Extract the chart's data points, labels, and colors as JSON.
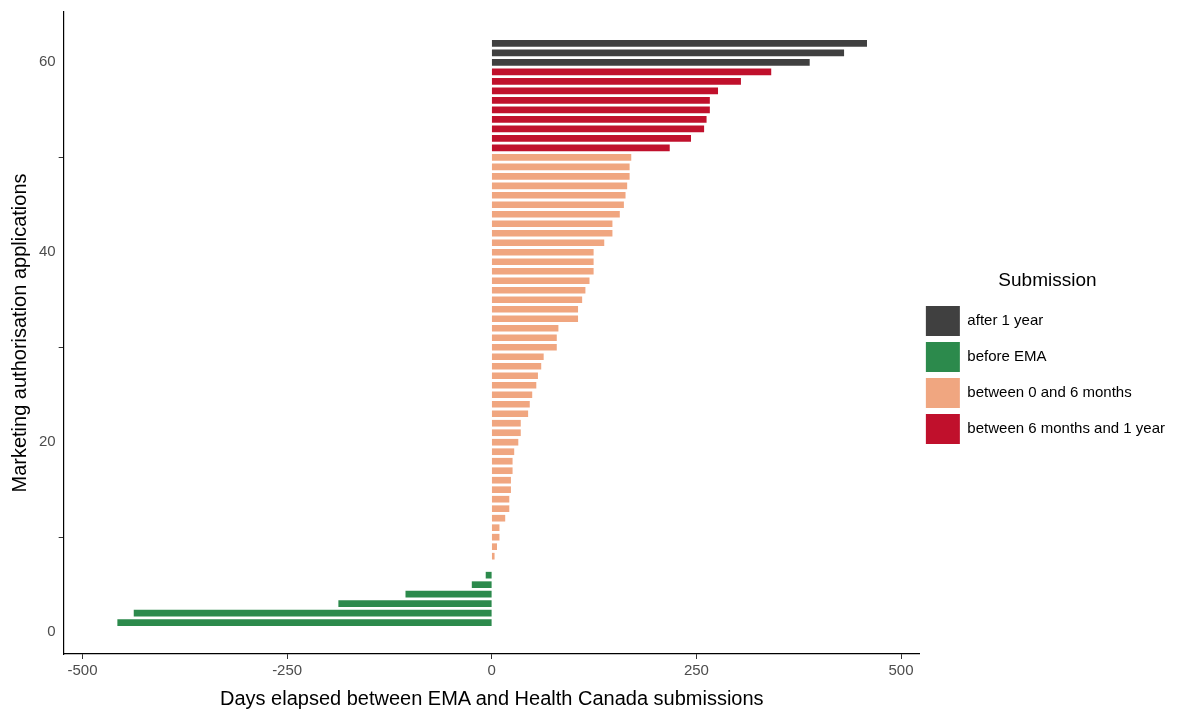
{
  "chart_data": {
    "type": "bar",
    "orientation": "horizontal",
    "xlabel": "Days elapsed between EMA and Health Canada submissions",
    "ylabel": "Marketing authorisation applications",
    "legend_title": "Submission",
    "legend": "right",
    "grid": false,
    "xlim": [
      -523,
      523
    ],
    "xticks": [
      -500,
      -250,
      0,
      250,
      500
    ],
    "ylim": [
      -2.3,
      65.3
    ],
    "yticks": [
      0,
      20,
      40,
      60
    ],
    "series": [
      {
        "name": "after 1 year",
        "color": "#404040",
        "x": [
          60,
          61,
          62
        ],
        "values": [
          388,
          430,
          458
        ]
      },
      {
        "name": "before EMA",
        "color": "#2c8a4c",
        "x": [
          1,
          2,
          3,
          4,
          5,
          6
        ],
        "values": [
          -457,
          -437,
          -187,
          -105,
          -24,
          -7
        ]
      },
      {
        "name": "between 0 and 6 months",
        "color": "#f0a680",
        "x": [
          8,
          9,
          10,
          11,
          12,
          13,
          14,
          15,
          16,
          17,
          18,
          19,
          20,
          21,
          22,
          23,
          24,
          25,
          26,
          27,
          28,
          29,
          30,
          31,
          32,
          33,
          34,
          35,
          36,
          37,
          38,
          39,
          40,
          41,
          42,
          43,
          44,
          45,
          46,
          47,
          48,
          49,
          50
        ],
        "values": [
          3,
          6,
          9,
          9,
          16,
          21,
          21,
          23,
          23,
          25,
          25,
          27,
          32,
          35,
          35,
          44,
          46,
          49,
          54,
          56,
          60,
          63,
          79,
          79,
          81,
          105,
          105,
          110,
          114,
          119,
          124,
          124,
          124,
          137,
          147,
          147,
          156,
          161,
          163,
          165,
          168,
          168,
          170
        ]
      },
      {
        "name": "between 6 months and 1 year",
        "color": "#c0102c",
        "x": [
          51,
          52,
          53,
          54,
          55,
          56,
          57,
          58,
          59
        ],
        "values": [
          217,
          243,
          259,
          262,
          266,
          266,
          276,
          304,
          341
        ]
      }
    ]
  }
}
